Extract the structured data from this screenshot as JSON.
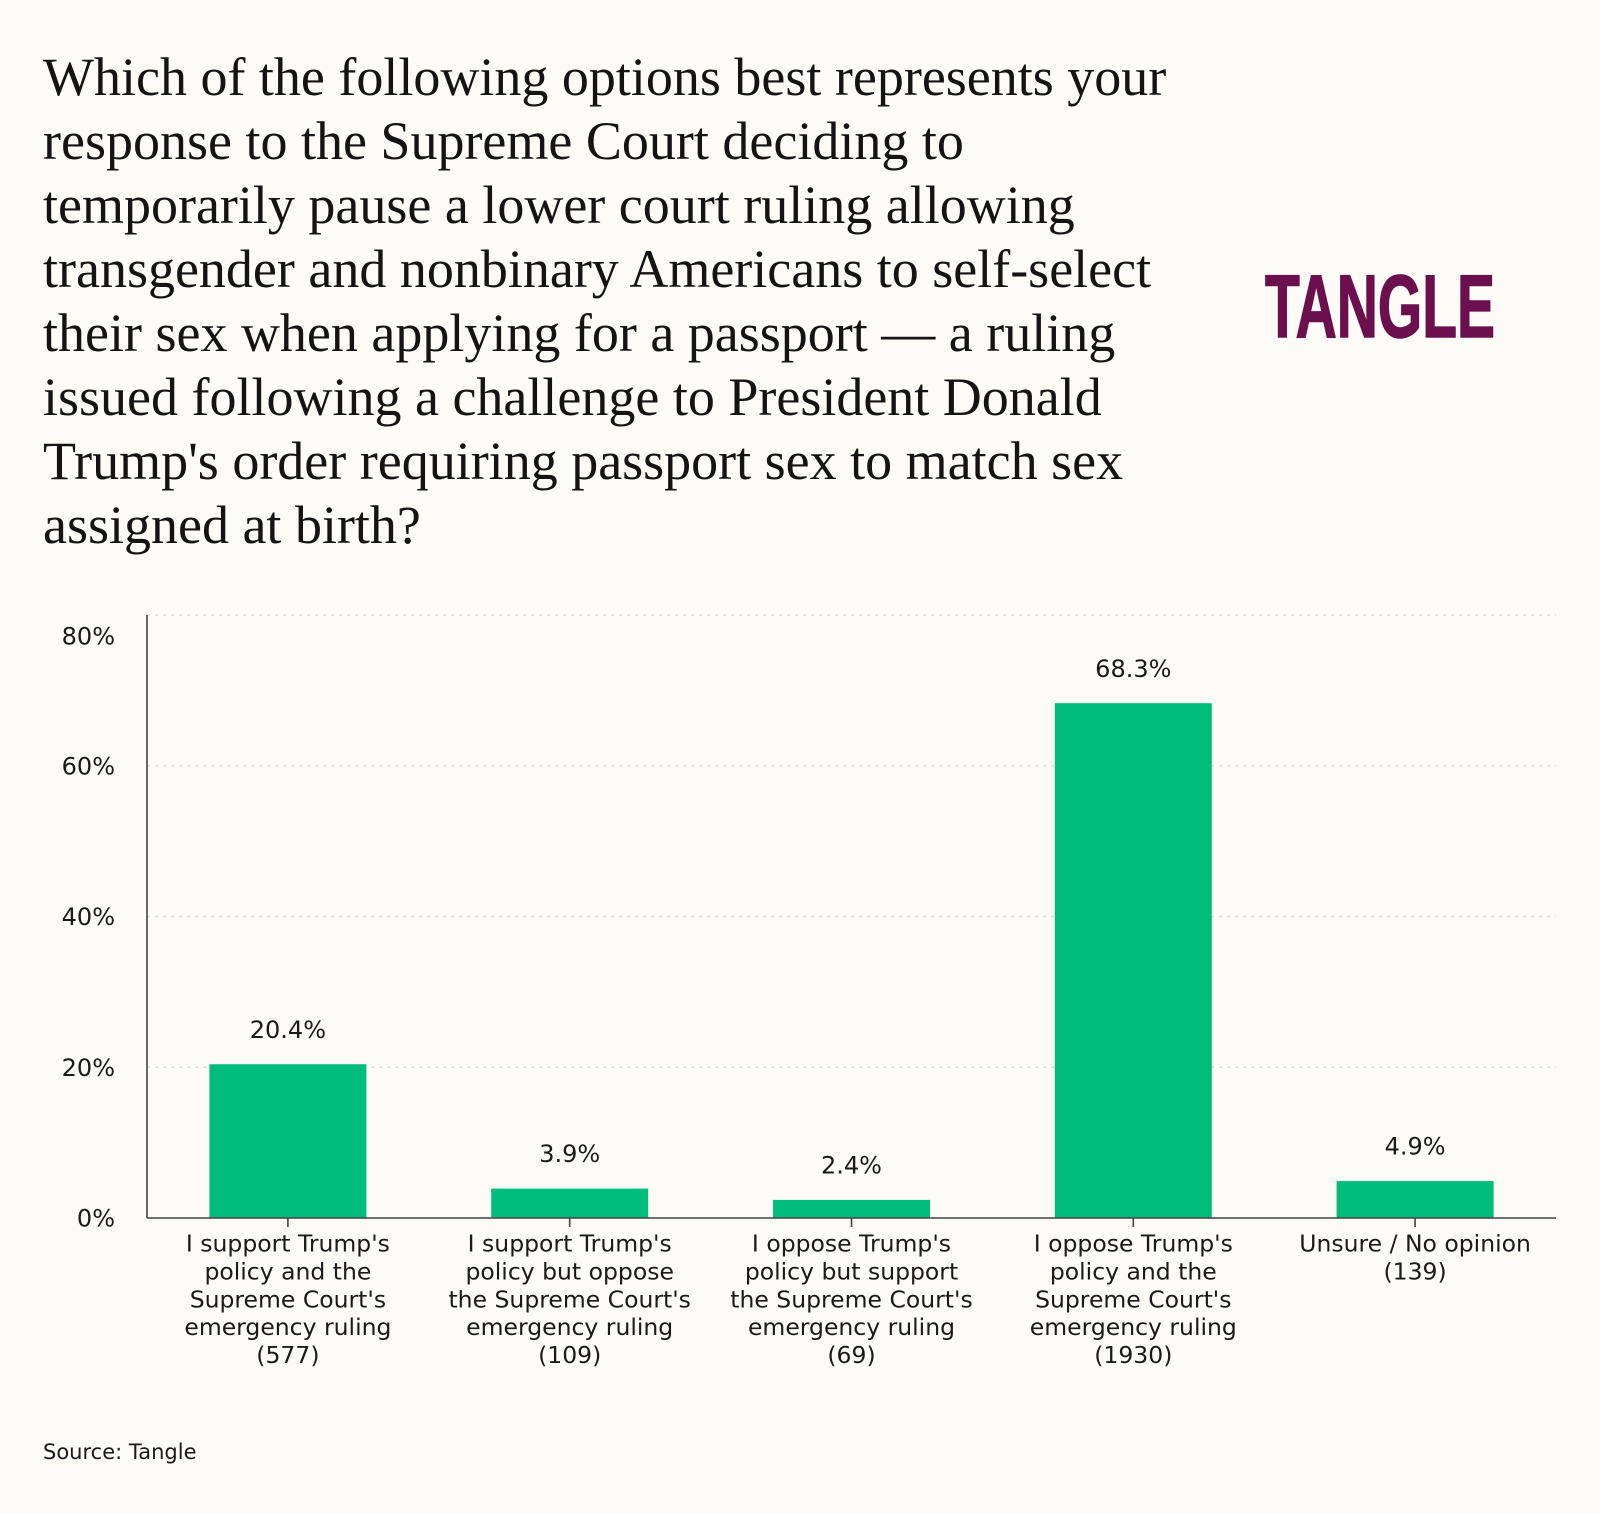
{
  "logo": {
    "text": "TANGLE"
  },
  "source": "Source: Tangle",
  "colors": {
    "background": "#FCFBF5",
    "text": "#1A1A1A",
    "bar": "#00BC7D",
    "logo": "#6B0F4E",
    "axis": "#444444",
    "grid": "#E2DFD6"
  },
  "chart_data": {
    "type": "bar",
    "title": [
      "Which of the following options best represents your",
      "response to the Supreme Court deciding to",
      "temporarily pause a lower court ruling allowing",
      "transgender and nonbinary Americans to self-select",
      "their sex when applying for a passport — a ruling",
      "issued following a challenge to President Donald",
      "Trump's order requiring passport sex to match sex",
      "assigned at birth?"
    ],
    "categories": [
      [
        "I support Trump's",
        "policy and the",
        "Supreme Court's",
        "emergency ruling",
        "(577)"
      ],
      [
        "I support Trump's",
        "policy but oppose",
        "the Supreme Court's",
        "emergency ruling",
        "(109)"
      ],
      [
        "I oppose Trump's",
        "policy but support",
        "the Supreme Court's",
        "emergency ruling",
        "(69)"
      ],
      [
        "I oppose Trump's",
        "policy and the",
        "Supreme Court's",
        "emergency ruling",
        "(1930)"
      ],
      [
        "Unsure / No opinion",
        "(139)"
      ]
    ],
    "values": [
      20.4,
      3.9,
      2.4,
      68.3,
      4.9
    ],
    "value_labels": [
      "20.4%",
      "3.9%",
      "2.4%",
      "68.3%",
      "4.9%"
    ],
    "yticks": [
      0,
      20,
      40,
      60,
      80
    ],
    "ytick_labels": [
      "0%",
      "20%",
      "40%",
      "60%",
      "80%"
    ],
    "ylim": [
      0,
      80
    ],
    "xlabel": "",
    "ylabel": "",
    "grid": true
  }
}
